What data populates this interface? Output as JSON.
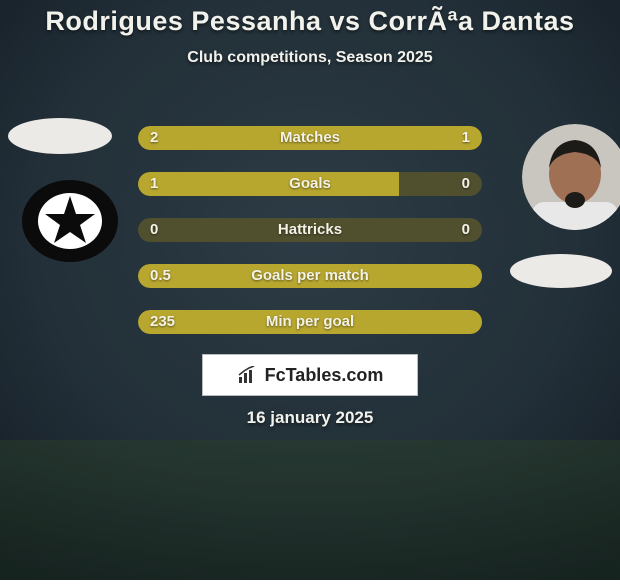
{
  "background": {
    "color_top": "#2a3a44",
    "color_bottom": "#1e2a32",
    "vignette": "rgba(0,0,0,0.35)"
  },
  "title": {
    "text": "Rodrigues Pessanha vs CorrÃªa Dantas",
    "color": "#f2f2ec",
    "fontsize": 27
  },
  "subtitle": {
    "text": "Club competitions, Season 2025",
    "color": "#f2f2ec",
    "fontsize": 16
  },
  "stats": {
    "track_color": "#50502f",
    "bar_color": "#b8a72f",
    "text_color": "#f4f2e6",
    "label_fontsize": 15,
    "value_fontsize": 15,
    "rows": [
      {
        "label": "Matches",
        "left_value": "2",
        "right_value": "1",
        "left_pct": 76,
        "right_pct": 24
      },
      {
        "label": "Goals",
        "left_value": "1",
        "right_value": "0",
        "left_pct": 76,
        "right_pct": 0
      },
      {
        "label": "Hattricks",
        "left_value": "0",
        "right_value": "0",
        "left_pct": 0,
        "right_pct": 0
      },
      {
        "label": "Goals per match",
        "left_value": "0.5",
        "right_value": "",
        "left_pct": 100,
        "right_pct": 0
      },
      {
        "label": "Min per goal",
        "left_value": "235",
        "right_value": "",
        "left_pct": 100,
        "right_pct": 0
      }
    ]
  },
  "avatars": {
    "left_ellipse_color": "#eceae6",
    "badge": {
      "outer": "#0b0b0b",
      "inner": "#ffffff",
      "star": "#0b0b0b"
    },
    "right_photo": {
      "skin": "#a07055",
      "hair": "#1d1b18",
      "shirt": "#e8e8e8",
      "bg": "#c9c6bf"
    },
    "right_ellipse_color": "#eceae6"
  },
  "brand": {
    "text": "FcTables.com",
    "text_color": "#222222",
    "box_bg": "#ffffff",
    "box_border": "#bbbbbb",
    "icon_color": "#333333",
    "fontsize": 18
  },
  "date": {
    "text": "16 january 2025",
    "color": "#f2f2ec",
    "fontsize": 17
  }
}
